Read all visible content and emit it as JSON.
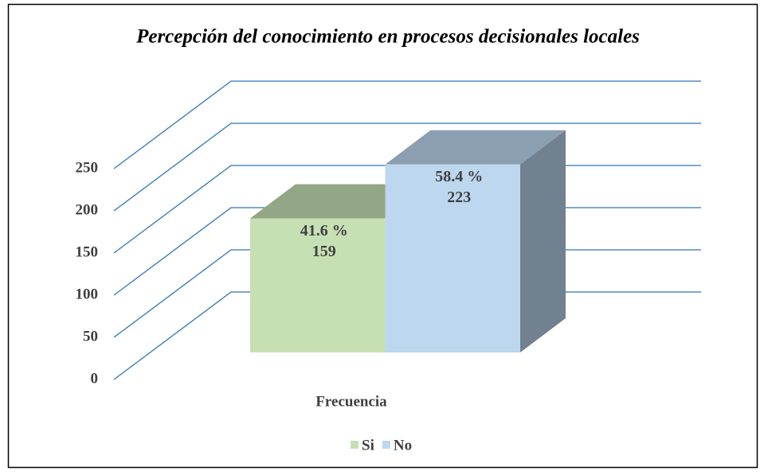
{
  "chart_data": {
    "type": "bar3d",
    "title": "Percepción del conocimiento en procesos decisionales locales",
    "categories": [
      "Frecuencia"
    ],
    "series": [
      {
        "name": "Si",
        "color": "#c6e0b4",
        "values": [
          159
        ],
        "percent_labels": [
          "41.6 %"
        ]
      },
      {
        "name": "No",
        "color": "#bdd7ee",
        "values": [
          223
        ],
        "percent_labels": [
          "58.4 %"
        ]
      }
    ],
    "ylim": [
      0,
      250
    ],
    "yticks": [
      0,
      50,
      100,
      150,
      200,
      250
    ],
    "grid": true,
    "grid_color": "#2e75b6",
    "legend": "bottom"
  }
}
